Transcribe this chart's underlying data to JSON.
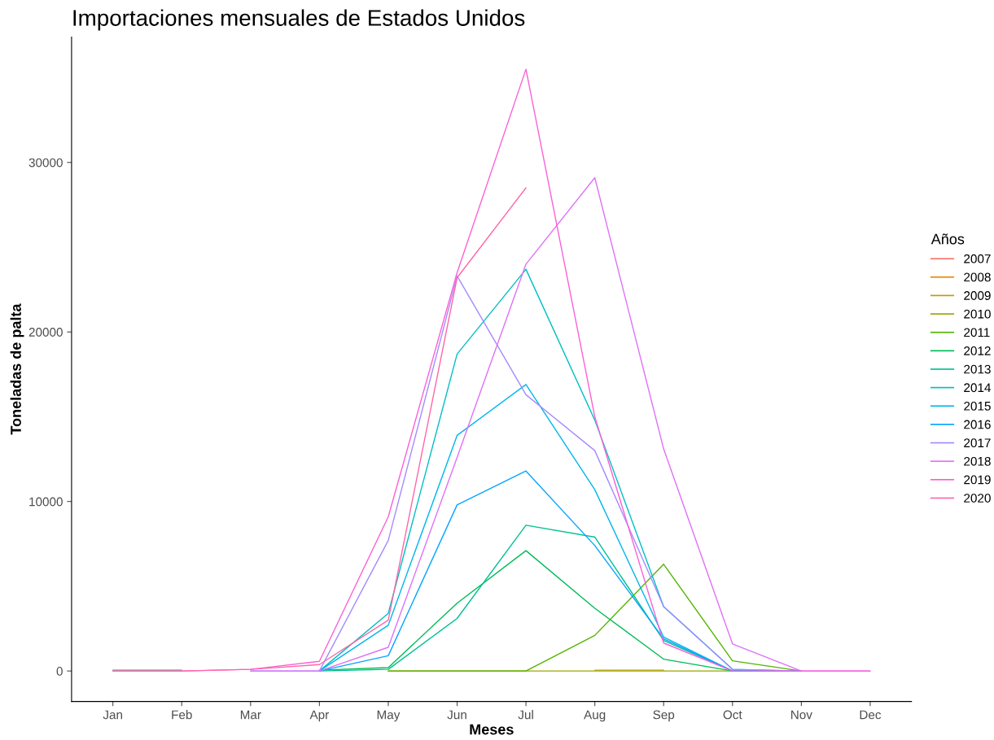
{
  "chart_data": {
    "type": "line",
    "title": "Importaciones mensuales de Estados Unidos",
    "xlabel": "Meses",
    "ylabel": "Toneladas de palta",
    "legend_title": "Años",
    "legend": "right",
    "grid": false,
    "marker": "none",
    "line_style": "solid",
    "categories": [
      "Jan",
      "Feb",
      "Mar",
      "Apr",
      "May",
      "Jun",
      "Jul",
      "Aug",
      "Sep",
      "Oct",
      "Nov",
      "Dec"
    ],
    "ylim": [
      -1800,
      37400
    ],
    "yticks": [
      0,
      10000,
      20000,
      30000
    ],
    "series": [
      {
        "name": "2007",
        "color": "#f8766d",
        "values": [
          null,
          null,
          null,
          null,
          null,
          null,
          null,
          null,
          null,
          null,
          null,
          null
        ]
      },
      {
        "name": "2008",
        "color": "#e38900",
        "values": [
          null,
          null,
          null,
          null,
          null,
          null,
          null,
          null,
          null,
          null,
          null,
          null
        ]
      },
      {
        "name": "2009",
        "color": "#c49a00",
        "values": [
          null,
          null,
          null,
          null,
          null,
          null,
          null,
          50,
          50,
          null,
          null,
          null
        ]
      },
      {
        "name": "2010",
        "color": "#99a800",
        "values": [
          null,
          null,
          null,
          null,
          0,
          0,
          0,
          0,
          0,
          0,
          null,
          null
        ]
      },
      {
        "name": "2011",
        "color": "#53b400",
        "values": [
          null,
          null,
          null,
          null,
          0,
          0,
          0,
          2100,
          6300,
          600,
          0,
          null
        ]
      },
      {
        "name": "2012",
        "color": "#00bc56",
        "values": [
          50,
          50,
          null,
          50,
          200,
          4000,
          7100,
          3700,
          700,
          0,
          0,
          null
        ]
      },
      {
        "name": "2013",
        "color": "#00c094",
        "values": [
          null,
          null,
          null,
          0,
          100,
          3100,
          8600,
          7900,
          1800,
          0,
          0,
          null
        ]
      },
      {
        "name": "2014",
        "color": "#00bfc4",
        "values": [
          null,
          null,
          null,
          0,
          3400,
          18700,
          23700,
          14800,
          3800,
          100,
          0,
          null
        ]
      },
      {
        "name": "2015",
        "color": "#00b6eb",
        "values": [
          null,
          null,
          null,
          0,
          2700,
          13900,
          16900,
          10700,
          2000,
          0,
          0,
          null
        ]
      },
      {
        "name": "2016",
        "color": "#06a4ff",
        "values": [
          null,
          null,
          null,
          0,
          900,
          9800,
          11800,
          7400,
          1900,
          0,
          0,
          null
        ]
      },
      {
        "name": "2017",
        "color": "#a58aff",
        "values": [
          null,
          null,
          0,
          0,
          7700,
          23300,
          16300,
          13000,
          3800,
          100,
          0,
          null
        ]
      },
      {
        "name": "2018",
        "color": "#df70f8",
        "values": [
          null,
          null,
          0,
          0,
          1400,
          12600,
          24000,
          29100,
          13100,
          1600,
          0,
          0
        ]
      },
      {
        "name": "2019",
        "color": "#fb61d7",
        "values": [
          0,
          0,
          100,
          570,
          9100,
          23500,
          35500,
          15000,
          1650,
          0,
          0,
          0
        ]
      },
      {
        "name": "2020",
        "color": "#ff66a8",
        "values": [
          0,
          0,
          100,
          380,
          3000,
          23200,
          28500,
          null,
          null,
          null,
          null,
          null
        ]
      }
    ]
  }
}
